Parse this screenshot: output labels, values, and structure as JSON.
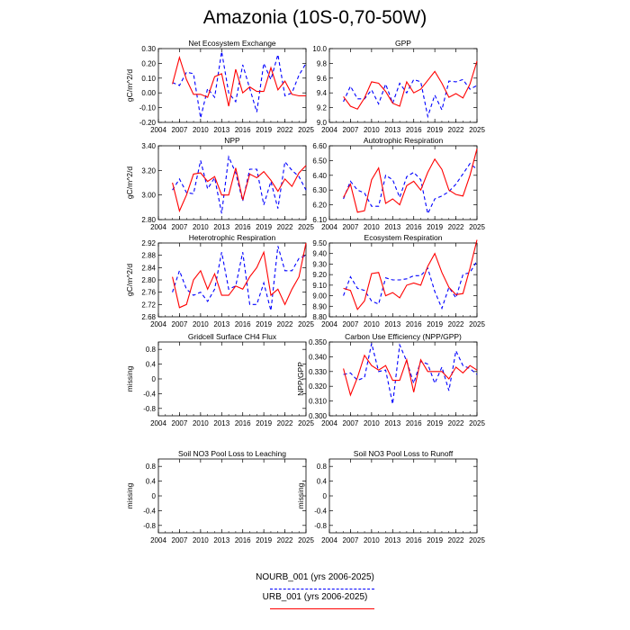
{
  "title": "Amazonia (10S-0,70-50W)",
  "colors": {
    "nourb": "#0000ff",
    "urb": "#ff0000",
    "axis": "#000000"
  },
  "legend": [
    {
      "label": "NOURB_001 (yrs 2006-2025)",
      "color": "#0000ff",
      "style": "dashed"
    },
    {
      "label": "URB_001 (yrs 2006-2025)",
      "color": "#ff0000",
      "style": "solid"
    }
  ],
  "chart_data": [
    {
      "type": "line",
      "title": "Net Ecosystem Exchange",
      "ylabel": "gC/m^2/d",
      "xlim": [
        2004,
        2025
      ],
      "ylim": [
        -0.2,
        0.3
      ],
      "xticks": [
        "2004",
        "2007",
        "2010",
        "2013",
        "2016",
        "2019",
        "2022",
        "2025"
      ],
      "yticks": [
        "-0.20",
        "-0.10",
        "0.00",
        "0.10",
        "0.20",
        "0.30"
      ],
      "x": [
        2006,
        2007,
        2008,
        2009,
        2010,
        2011,
        2012,
        2013,
        2014,
        2015,
        2016,
        2017,
        2018,
        2019,
        2020,
        2021,
        2022,
        2023,
        2024,
        2025
      ],
      "series": [
        {
          "name": "NOURB_001",
          "values": [
            0.07,
            0.05,
            0.14,
            0.13,
            -0.17,
            0.03,
            -0.03,
            0.28,
            0.0,
            -0.06,
            0.19,
            0.03,
            -0.13,
            0.2,
            0.09,
            0.26,
            -0.02,
            0.0,
            0.12,
            0.2
          ]
        },
        {
          "name": "URB_001",
          "values": [
            0.06,
            0.24,
            0.09,
            -0.01,
            -0.01,
            -0.03,
            0.11,
            0.13,
            -0.09,
            0.16,
            0.0,
            0.04,
            0.01,
            0.01,
            0.17,
            0.02,
            0.08,
            -0.01,
            -0.02,
            -0.02
          ]
        }
      ]
    },
    {
      "type": "line",
      "title": "GPP",
      "ylabel": "",
      "xlim": [
        2004,
        2025
      ],
      "ylim": [
        9.0,
        10.0
      ],
      "xticks": [
        "2004",
        "2007",
        "2010",
        "2013",
        "2016",
        "2019",
        "2022",
        "2025"
      ],
      "yticks": [
        "9.0",
        "9.2",
        "9.4",
        "9.6",
        "9.8",
        "10.0"
      ],
      "x": [
        2006,
        2007,
        2008,
        2009,
        2010,
        2011,
        2012,
        2013,
        2014,
        2015,
        2016,
        2017,
        2018,
        2019,
        2020,
        2021,
        2022,
        2023,
        2024,
        2025
      ],
      "series": [
        {
          "name": "NOURB_001",
          "values": [
            9.28,
            9.49,
            9.32,
            9.32,
            9.44,
            9.25,
            9.52,
            9.26,
            9.53,
            9.4,
            9.58,
            9.55,
            9.08,
            9.37,
            9.17,
            9.56,
            9.55,
            9.58,
            9.45,
            9.5
          ]
        },
        {
          "name": "URB_001",
          "values": [
            9.35,
            9.22,
            9.18,
            9.33,
            9.55,
            9.53,
            9.42,
            9.26,
            9.22,
            9.55,
            9.4,
            9.45,
            9.57,
            9.69,
            9.53,
            9.34,
            9.39,
            9.33,
            9.52,
            9.83
          ]
        }
      ]
    },
    {
      "type": "line",
      "title": "NPP",
      "ylabel": "gC/m^2/d",
      "xlim": [
        2004,
        2025
      ],
      "ylim": [
        2.8,
        3.4
      ],
      "xticks": [
        "2004",
        "2007",
        "2010",
        "2013",
        "2016",
        "2019",
        "2022",
        "2025"
      ],
      "yticks": [
        "2.80",
        "3.00",
        "3.20",
        "3.40"
      ],
      "x": [
        2006,
        2007,
        2008,
        2009,
        2010,
        2011,
        2012,
        2013,
        2014,
        2015,
        2016,
        2017,
        2018,
        2019,
        2020,
        2021,
        2022,
        2023,
        2024,
        2025
      ],
      "series": [
        {
          "name": "NOURB_001",
          "values": [
            3.04,
            3.13,
            3.02,
            3.01,
            3.28,
            3.05,
            3.14,
            2.85,
            3.31,
            3.18,
            2.95,
            3.21,
            3.21,
            2.92,
            3.11,
            2.89,
            3.27,
            3.2,
            3.15,
            3.04
          ]
        },
        {
          "name": "URB_001",
          "values": [
            3.1,
            2.87,
            3.0,
            3.17,
            3.18,
            3.11,
            3.15,
            3.0,
            3.0,
            3.22,
            2.96,
            3.17,
            3.14,
            3.19,
            3.12,
            3.03,
            3.13,
            3.07,
            3.18,
            3.24
          ]
        }
      ]
    },
    {
      "type": "line",
      "title": "Autotrophic Respiration",
      "ylabel": "",
      "xlim": [
        2004,
        2025
      ],
      "ylim": [
        6.1,
        6.6
      ],
      "xticks": [
        "2004",
        "2007",
        "2010",
        "2013",
        "2016",
        "2019",
        "2022",
        "2025"
      ],
      "yticks": [
        "6.10",
        "6.20",
        "6.30",
        "6.40",
        "6.50",
        "6.60"
      ],
      "x": [
        2006,
        2007,
        2008,
        2009,
        2010,
        2011,
        2012,
        2013,
        2014,
        2015,
        2016,
        2017,
        2018,
        2019,
        2020,
        2021,
        2022,
        2023,
        2024,
        2025
      ],
      "series": [
        {
          "name": "NOURB_001",
          "values": [
            6.24,
            6.36,
            6.3,
            6.28,
            6.19,
            6.19,
            6.4,
            6.37,
            6.25,
            6.39,
            6.42,
            6.37,
            6.14,
            6.24,
            6.26,
            6.29,
            6.34,
            6.41,
            6.48,
            6.44
          ]
        },
        {
          "name": "URB_001",
          "values": [
            6.25,
            6.34,
            6.15,
            6.16,
            6.37,
            6.45,
            6.21,
            6.24,
            6.2,
            6.33,
            6.36,
            6.3,
            6.42,
            6.51,
            6.44,
            6.3,
            6.27,
            6.26,
            6.4,
            6.58
          ]
        }
      ]
    },
    {
      "type": "line",
      "title": "Heterotrophic Respiration",
      "ylabel": "gC/m^2/d",
      "xlim": [
        2004,
        2025
      ],
      "ylim": [
        2.68,
        2.92
      ],
      "xticks": [
        "2004",
        "2007",
        "2010",
        "2013",
        "2016",
        "2019",
        "2022",
        "2025"
      ],
      "yticks": [
        "2.68",
        "2.72",
        "2.76",
        "2.80",
        "2.84",
        "2.88",
        "2.92"
      ],
      "x": [
        2006,
        2007,
        2008,
        2009,
        2010,
        2011,
        2012,
        2013,
        2014,
        2015,
        2016,
        2017,
        2018,
        2019,
        2020,
        2021,
        2022,
        2023,
        2024,
        2025
      ],
      "series": [
        {
          "name": "NOURB_001",
          "values": [
            2.76,
            2.83,
            2.77,
            2.75,
            2.76,
            2.73,
            2.77,
            2.89,
            2.77,
            2.78,
            2.89,
            2.72,
            2.72,
            2.79,
            2.7,
            2.91,
            2.83,
            2.83,
            2.87,
            2.88
          ]
        },
        {
          "name": "URB_001",
          "values": [
            2.81,
            2.71,
            2.72,
            2.8,
            2.83,
            2.77,
            2.82,
            2.75,
            2.75,
            2.78,
            2.77,
            2.81,
            2.84,
            2.89,
            2.75,
            2.77,
            2.72,
            2.77,
            2.81,
            2.92
          ]
        }
      ]
    },
    {
      "type": "line",
      "title": "Ecosystem Respiration",
      "ylabel": "",
      "xlim": [
        2004,
        2025
      ],
      "ylim": [
        8.8,
        9.5
      ],
      "xticks": [
        "2004",
        "2007",
        "2010",
        "2013",
        "2016",
        "2019",
        "2022",
        "2025"
      ],
      "yticks": [
        "8.80",
        "8.90",
        "9.00",
        "9.10",
        "9.20",
        "9.30",
        "9.40",
        "9.50"
      ],
      "x": [
        2006,
        2007,
        2008,
        2009,
        2010,
        2011,
        2012,
        2013,
        2014,
        2015,
        2016,
        2017,
        2018,
        2019,
        2020,
        2021,
        2022,
        2023,
        2024,
        2025
      ],
      "series": [
        {
          "name": "NOURB_001",
          "values": [
            9.0,
            9.18,
            9.07,
            9.05,
            8.95,
            8.92,
            9.17,
            9.15,
            9.15,
            9.16,
            9.19,
            9.19,
            9.26,
            9.04,
            8.88,
            9.08,
            8.98,
            9.2,
            9.22,
            9.33
          ]
        },
        {
          "name": "URB_001",
          "values": [
            9.07,
            9.05,
            8.87,
            8.95,
            9.21,
            9.22,
            9.0,
            9.03,
            8.98,
            9.1,
            9.12,
            9.1,
            9.28,
            9.4,
            9.22,
            9.08,
            9.01,
            9.02,
            9.26,
            9.53
          ]
        }
      ]
    },
    {
      "type": "line",
      "title": "Gridcell Surface CH4 Flux",
      "ylabel": "missing",
      "xlim": [
        2004,
        2025
      ],
      "ylim": [
        -1.0,
        1.0
      ],
      "xticks": [
        "2004",
        "2007",
        "2010",
        "2013",
        "2016",
        "2019",
        "2022",
        "2025"
      ],
      "yticks": [
        "-0.8",
        "-0.4",
        "0",
        "0.4",
        "0.8"
      ],
      "series": []
    },
    {
      "type": "line",
      "title": "Carbon Use Efficiency (NPP/GPP)",
      "ylabel": "NPP/GPP",
      "xlim": [
        2004,
        2025
      ],
      "ylim": [
        0.3,
        0.35
      ],
      "xticks": [
        "2004",
        "2007",
        "2010",
        "2013",
        "2016",
        "2019",
        "2022",
        "2025"
      ],
      "yticks": [
        "0.300",
        "0.310",
        "0.320",
        "0.330",
        "0.340",
        "0.350"
      ],
      "x": [
        2006,
        2007,
        2008,
        2009,
        2010,
        2011,
        2012,
        2013,
        2014,
        2015,
        2016,
        2017,
        2018,
        2019,
        2020,
        2021,
        2022,
        2023,
        2024,
        2025
      ],
      "series": [
        {
          "name": "NOURB_001",
          "values": [
            0.328,
            0.329,
            0.324,
            0.326,
            0.349,
            0.33,
            0.331,
            0.308,
            0.348,
            0.337,
            0.322,
            0.337,
            0.335,
            0.322,
            0.333,
            0.317,
            0.344,
            0.334,
            0.332,
            0.328
          ]
        },
        {
          "name": "URB_001",
          "values": [
            0.332,
            0.314,
            0.326,
            0.341,
            0.334,
            0.331,
            0.334,
            0.324,
            0.324,
            0.338,
            0.316,
            0.338,
            0.33,
            0.33,
            0.33,
            0.325,
            0.333,
            0.329,
            0.334,
            0.331
          ]
        }
      ]
    },
    {
      "type": "line",
      "title": "Soil NO3 Pool Loss to Leaching",
      "ylabel": "missing",
      "xlim": [
        2004,
        2025
      ],
      "ylim": [
        -1.0,
        1.0
      ],
      "xticks": [
        "2004",
        "2007",
        "2010",
        "2013",
        "2016",
        "2019",
        "2022",
        "2025"
      ],
      "yticks": [
        "-0.8",
        "-0.4",
        "0",
        "0.4",
        "0.8"
      ],
      "series": []
    },
    {
      "type": "line",
      "title": "Soil NO3 Pool Loss to Runoff",
      "ylabel": "missing",
      "xlim": [
        2004,
        2025
      ],
      "ylim": [
        -1.0,
        1.0
      ],
      "xticks": [
        "2004",
        "2007",
        "2010",
        "2013",
        "2016",
        "2019",
        "2022",
        "2025"
      ],
      "yticks": [
        "-0.8",
        "-0.4",
        "0",
        "0.4",
        "0.8"
      ],
      "series": []
    }
  ]
}
